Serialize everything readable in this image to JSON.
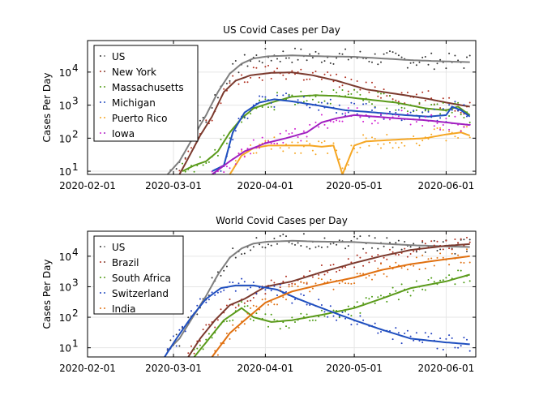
{
  "chart_data": [
    {
      "type": "line",
      "title": "US Covid Cases per Day",
      "xlabel": "",
      "ylabel": "Cases Per Day",
      "yscale": "log",
      "ylim": [
        8,
        90000
      ],
      "xlim": [
        "2020-02-01",
        "2020-06-11"
      ],
      "x_ticks": [
        "2020-02-01",
        "2020-03-01",
        "2020-04-01",
        "2020-05-01",
        "2020-06-01"
      ],
      "y_ticks": [
        "10^1",
        "10^2",
        "10^3",
        "10^4"
      ],
      "grid": true,
      "legend_position": "top-left",
      "series": [
        {
          "name": "US",
          "color": "#7f7f7f",
          "dot_color": "#333333",
          "points": [
            [
              "2020-02-28",
              8
            ],
            [
              "2020-03-03",
              20
            ],
            [
              "2020-03-08",
              120
            ],
            [
              "2020-03-12",
              500
            ],
            [
              "2020-03-16",
              2500
            ],
            [
              "2020-03-20",
              9000
            ],
            [
              "2020-03-24",
              18000
            ],
            [
              "2020-03-28",
              26000
            ],
            [
              "2020-04-02",
              30000
            ],
            [
              "2020-04-10",
              32000
            ],
            [
              "2020-04-20",
              30000
            ],
            [
              "2020-05-01",
              29000
            ],
            [
              "2020-05-10",
              26000
            ],
            [
              "2020-05-20",
              23000
            ],
            [
              "2020-06-01",
              21000
            ],
            [
              "2020-06-09",
              20000
            ]
          ]
        },
        {
          "name": "New York",
          "color": "#7b3a2e",
          "dot_color": "#b03020",
          "points": [
            [
              "2020-03-03",
              8
            ],
            [
              "2020-03-06",
              25
            ],
            [
              "2020-03-10",
              120
            ],
            [
              "2020-03-14",
              450
            ],
            [
              "2020-03-18",
              2500
            ],
            [
              "2020-03-22",
              5500
            ],
            [
              "2020-03-27",
              8000
            ],
            [
              "2020-04-03",
              9500
            ],
            [
              "2020-04-10",
              9800
            ],
            [
              "2020-04-17",
              8000
            ],
            [
              "2020-04-25",
              5500
            ],
            [
              "2020-05-05",
              3000
            ],
            [
              "2020-05-15",
              2200
            ],
            [
              "2020-05-25",
              1600
            ],
            [
              "2020-06-01",
              1200
            ],
            [
              "2020-06-09",
              900
            ]
          ]
        },
        {
          "name": "Massachusetts",
          "color": "#5a9a1a",
          "dot_color": "#4a9a10",
          "points": [
            [
              "2020-03-04",
              10
            ],
            [
              "2020-03-08",
              15
            ],
            [
              "2020-03-12",
              20
            ],
            [
              "2020-03-16",
              40
            ],
            [
              "2020-03-20",
              150
            ],
            [
              "2020-03-24",
              400
            ],
            [
              "2020-03-28",
              800
            ],
            [
              "2020-04-03",
              1200
            ],
            [
              "2020-04-10",
              1800
            ],
            [
              "2020-04-18",
              2000
            ],
            [
              "2020-04-25",
              1900
            ],
            [
              "2020-05-05",
              1500
            ],
            [
              "2020-05-15",
              1200
            ],
            [
              "2020-05-25",
              800
            ],
            [
              "2020-06-01",
              700
            ],
            [
              "2020-06-05",
              900
            ],
            [
              "2020-06-09",
              500
            ]
          ]
        },
        {
          "name": "Michigan",
          "color": "#1f4fbf",
          "dot_color": "#1f3fbf",
          "points": [
            [
              "2020-03-14",
              10
            ],
            [
              "2020-03-18",
              15
            ],
            [
              "2020-03-21",
              150
            ],
            [
              "2020-03-25",
              600
            ],
            [
              "2020-03-30",
              1200
            ],
            [
              "2020-04-04",
              1500
            ],
            [
              "2020-04-10",
              1300
            ],
            [
              "2020-04-18",
              1000
            ],
            [
              "2020-04-28",
              700
            ],
            [
              "2020-05-08",
              600
            ],
            [
              "2020-05-18",
              500
            ],
            [
              "2020-05-26",
              450
            ],
            [
              "2020-06-01",
              500
            ],
            [
              "2020-06-03",
              900
            ],
            [
              "2020-06-06",
              700
            ],
            [
              "2020-06-09",
              450
            ]
          ]
        },
        {
          "name": "Puerto Rico",
          "color": "#f5a623",
          "dot_color": "#f5a623",
          "points": [
            [
              "2020-03-20",
              8
            ],
            [
              "2020-03-24",
              30
            ],
            [
              "2020-03-28",
              50
            ],
            [
              "2020-04-02",
              60
            ],
            [
              "2020-04-10",
              60
            ],
            [
              "2020-04-16",
              60
            ],
            [
              "2020-04-20",
              55
            ],
            [
              "2020-04-24",
              60
            ],
            [
              "2020-04-27",
              8
            ],
            [
              "2020-05-01",
              60
            ],
            [
              "2020-05-05",
              80
            ],
            [
              "2020-05-15",
              90
            ],
            [
              "2020-05-25",
              100
            ],
            [
              "2020-06-01",
              130
            ],
            [
              "2020-06-06",
              150
            ],
            [
              "2020-06-09",
              120
            ]
          ]
        },
        {
          "name": "Iowa",
          "color": "#a020c0",
          "dot_color": "#d020d0",
          "points": [
            [
              "2020-03-14",
              8
            ],
            [
              "2020-03-20",
              20
            ],
            [
              "2020-03-25",
              40
            ],
            [
              "2020-04-01",
              70
            ],
            [
              "2020-04-08",
              100
            ],
            [
              "2020-04-15",
              150
            ],
            [
              "2020-04-20",
              300
            ],
            [
              "2020-04-25",
              400
            ],
            [
              "2020-05-01",
              500
            ],
            [
              "2020-05-08",
              450
            ],
            [
              "2020-05-15",
              400
            ],
            [
              "2020-05-25",
              350
            ],
            [
              "2020-06-01",
              300
            ],
            [
              "2020-06-09",
              250
            ]
          ]
        }
      ]
    },
    {
      "type": "line",
      "title": "World Covid Cases per Day",
      "xlabel": "",
      "ylabel": "Cases Per Day",
      "yscale": "log",
      "ylim": [
        5,
        66000
      ],
      "xlim": [
        "2020-02-01",
        "2020-06-11"
      ],
      "x_ticks": [
        "2020-02-01",
        "2020-03-01",
        "2020-04-01",
        "2020-05-01",
        "2020-06-01"
      ],
      "y_ticks": [
        "10^1",
        "10^2",
        "10^3",
        "10^4"
      ],
      "grid": true,
      "legend_position": "top-left",
      "series": [
        {
          "name": "US",
          "color": "#7f7f7f",
          "dot_color": "#333333",
          "points": [
            [
              "2020-02-28",
              8
            ],
            [
              "2020-03-03",
              20
            ],
            [
              "2020-03-08",
              120
            ],
            [
              "2020-03-12",
              500
            ],
            [
              "2020-03-16",
              2500
            ],
            [
              "2020-03-20",
              9000
            ],
            [
              "2020-03-24",
              18000
            ],
            [
              "2020-03-28",
              26000
            ],
            [
              "2020-04-02",
              30000
            ],
            [
              "2020-04-10",
              32000
            ],
            [
              "2020-04-20",
              30000
            ],
            [
              "2020-05-01",
              29000
            ],
            [
              "2020-05-10",
              26000
            ],
            [
              "2020-05-20",
              23000
            ],
            [
              "2020-06-01",
              21000
            ],
            [
              "2020-06-09",
              20000
            ]
          ]
        },
        {
          "name": "Brazil",
          "color": "#7b3a2e",
          "dot_color": "#b03020",
          "points": [
            [
              "2020-03-06",
              5
            ],
            [
              "2020-03-10",
              20
            ],
            [
              "2020-03-15",
              80
            ],
            [
              "2020-03-20",
              250
            ],
            [
              "2020-03-25",
              400
            ],
            [
              "2020-04-01",
              1000
            ],
            [
              "2020-04-10",
              1500
            ],
            [
              "2020-04-20",
              3000
            ],
            [
              "2020-05-01",
              6000
            ],
            [
              "2020-05-10",
              10000
            ],
            [
              "2020-05-20",
              16000
            ],
            [
              "2020-06-01",
              22000
            ],
            [
              "2020-06-09",
              25000
            ]
          ]
        },
        {
          "name": "South Africa",
          "color": "#5a9a1a",
          "dot_color": "#4a9a10",
          "points": [
            [
              "2020-03-08",
              5
            ],
            [
              "2020-03-12",
              15
            ],
            [
              "2020-03-18",
              80
            ],
            [
              "2020-03-24",
              200
            ],
            [
              "2020-03-28",
              100
            ],
            [
              "2020-04-03",
              70
            ],
            [
              "2020-04-10",
              80
            ],
            [
              "2020-04-20",
              120
            ],
            [
              "2020-05-01",
              200
            ],
            [
              "2020-05-10",
              400
            ],
            [
              "2020-05-20",
              900
            ],
            [
              "2020-06-01",
              1500
            ],
            [
              "2020-06-09",
              2500
            ]
          ]
        },
        {
          "name": "Switzerland",
          "color": "#1f4fbf",
          "dot_color": "#1f3fbf",
          "points": [
            [
              "2020-02-27",
              5
            ],
            [
              "2020-03-02",
              20
            ],
            [
              "2020-03-07",
              100
            ],
            [
              "2020-03-12",
              400
            ],
            [
              "2020-03-17",
              900
            ],
            [
              "2020-03-22",
              1100
            ],
            [
              "2020-03-28",
              1100
            ],
            [
              "2020-04-05",
              800
            ],
            [
              "2020-04-12",
              400
            ],
            [
              "2020-04-20",
              200
            ],
            [
              "2020-05-01",
              80
            ],
            [
              "2020-05-10",
              40
            ],
            [
              "2020-05-20",
              20
            ],
            [
              "2020-06-01",
              15
            ],
            [
              "2020-06-09",
              13
            ]
          ]
        },
        {
          "name": "India",
          "color": "#e07010",
          "dot_color": "#e07010",
          "points": [
            [
              "2020-03-14",
              5
            ],
            [
              "2020-03-20",
              30
            ],
            [
              "2020-03-25",
              80
            ],
            [
              "2020-04-01",
              300
            ],
            [
              "2020-04-10",
              700
            ],
            [
              "2020-04-20",
              1200
            ],
            [
              "2020-05-01",
              2000
            ],
            [
              "2020-05-10",
              3500
            ],
            [
              "2020-05-20",
              5500
            ],
            [
              "2020-06-01",
              8000
            ],
            [
              "2020-06-09",
              10000
            ]
          ]
        }
      ]
    }
  ]
}
